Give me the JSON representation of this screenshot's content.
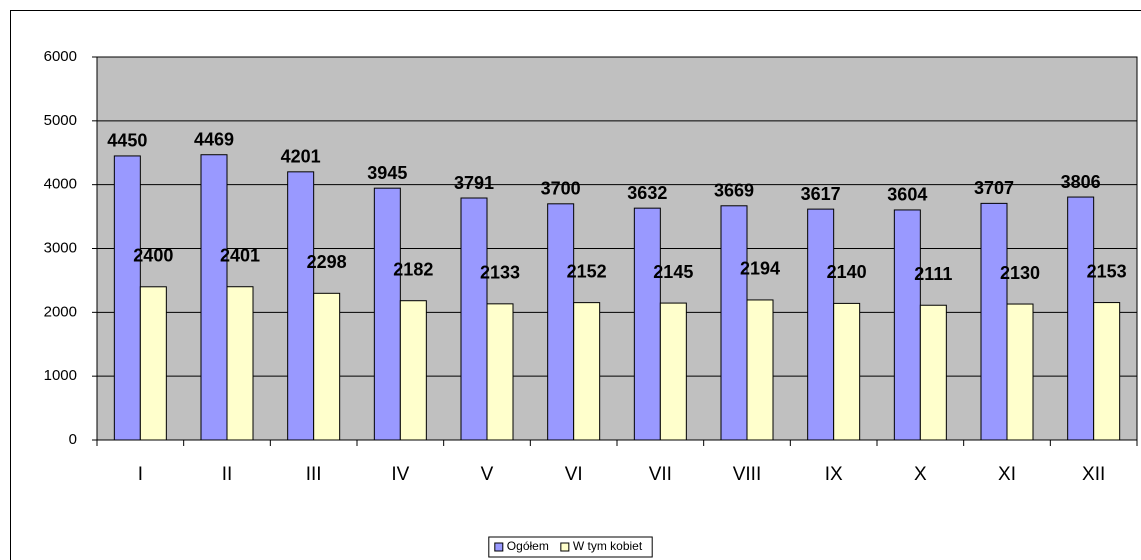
{
  "chart_data": {
    "type": "bar",
    "categories": [
      "I",
      "II",
      "III",
      "IV",
      "V",
      "VI",
      "VII",
      "VIII",
      "IX",
      "X",
      "XI",
      "XII"
    ],
    "series": [
      {
        "name": "Ogółem",
        "color": "#9999ff",
        "values": [
          4450,
          4469,
          4201,
          3945,
          3791,
          3700,
          3632,
          3669,
          3617,
          3604,
          3707,
          3806
        ]
      },
      {
        "name": "W tym kobiet",
        "color": "#ffffcc",
        "values": [
          2400,
          2401,
          2298,
          2182,
          2133,
          2152,
          2145,
          2194,
          2140,
          2111,
          2130,
          2153
        ]
      }
    ],
    "ylim": [
      0,
      6000
    ],
    "yticks": [
      0,
      1000,
      2000,
      3000,
      4000,
      5000,
      6000
    ],
    "grid": true,
    "plot_background": "#c0c0c0",
    "legend": "bottom"
  }
}
